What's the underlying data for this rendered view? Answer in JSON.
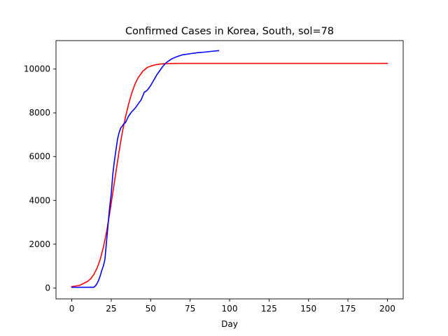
{
  "chart_data": {
    "type": "line",
    "title": "Confirmed Cases in Korea, South, sol=78",
    "xlabel": "Day",
    "ylabel": "",
    "xlim": [
      -10,
      210
    ],
    "ylim": [
      -500,
      11300
    ],
    "xticks": [
      0,
      25,
      50,
      75,
      100,
      125,
      150,
      175,
      200
    ],
    "yticks": [
      0,
      2000,
      4000,
      6000,
      8000,
      10000
    ],
    "grid": false,
    "legend": "none",
    "series": [
      {
        "color": "#ff0000",
        "style": "solid",
        "x": [
          0,
          5,
          10,
          12,
          14,
          16,
          18,
          20,
          22,
          24,
          26,
          28,
          30,
          32,
          34,
          36,
          38,
          40,
          42,
          45,
          48,
          52,
          56,
          60,
          70,
          80,
          100,
          150,
          200
        ],
        "y": [
          60,
          120,
          300,
          420,
          620,
          900,
          1300,
          1850,
          2550,
          3400,
          4350,
          5300,
          6250,
          7100,
          7800,
          8400,
          8900,
          9300,
          9600,
          9900,
          10080,
          10180,
          10230,
          10250,
          10260,
          10260,
          10260,
          10260,
          10260
        ]
      },
      {
        "color": "#0000ff",
        "style": "solid",
        "x": [
          0,
          5,
          10,
          14,
          15,
          16,
          17,
          18,
          19,
          20,
          21,
          22,
          23,
          24,
          25,
          26,
          27,
          28,
          29,
          30,
          31,
          32,
          33,
          34,
          35,
          36,
          38,
          40,
          42,
          44,
          46,
          47,
          48,
          50,
          52,
          54,
          56,
          58,
          60,
          63,
          66,
          70,
          75,
          80,
          85,
          90,
          93
        ],
        "y": [
          30,
          30,
          30,
          30,
          100,
          200,
          350,
          550,
          800,
          1000,
          1300,
          2100,
          2900,
          3700,
          4300,
          5200,
          5800,
          6300,
          6800,
          7100,
          7300,
          7400,
          7500,
          7550,
          7700,
          7850,
          8050,
          8200,
          8400,
          8600,
          8950,
          8980,
          9050,
          9250,
          9500,
          9750,
          9950,
          10150,
          10300,
          10450,
          10550,
          10650,
          10700,
          10750,
          10780,
          10820,
          10840
        ]
      }
    ]
  }
}
